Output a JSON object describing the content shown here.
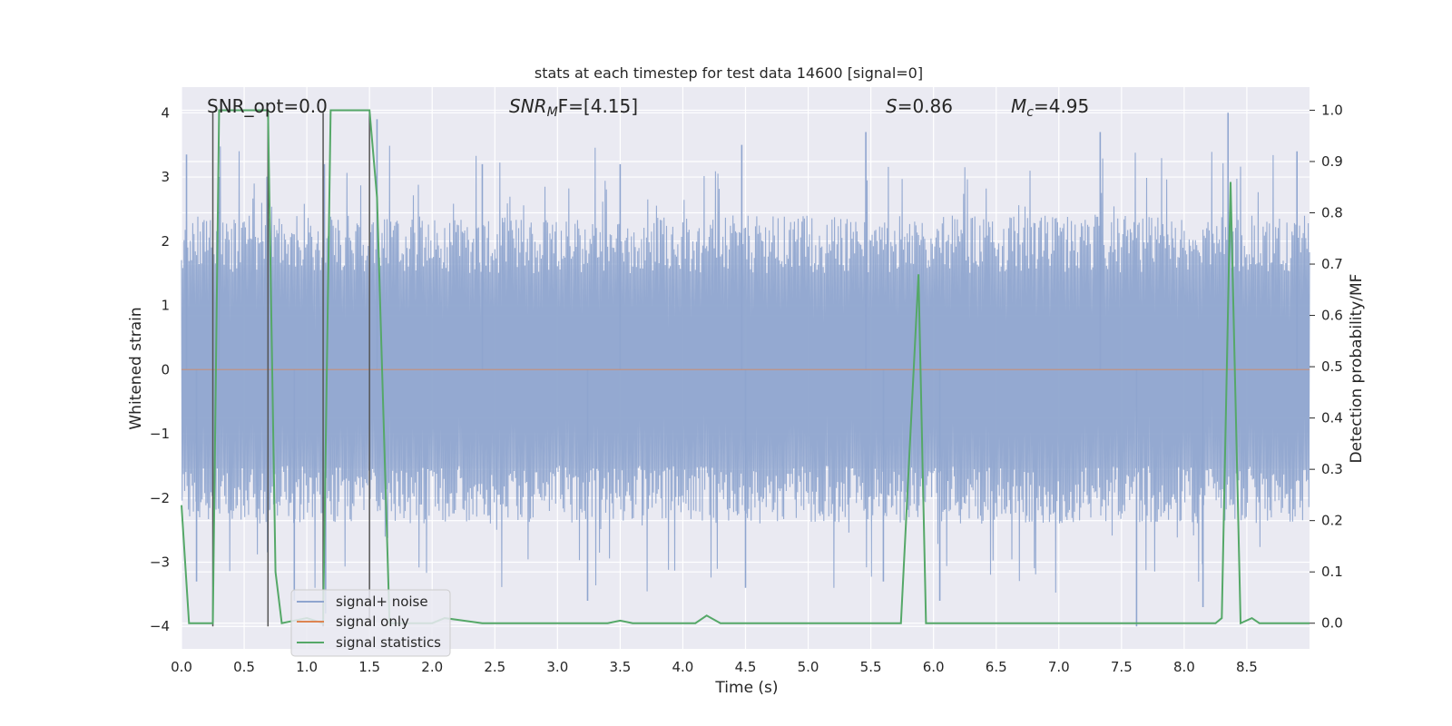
{
  "chart_data": {
    "type": "line",
    "title": "stats at each timestep for test data 14600 [signal=0]",
    "xlabel": "Time (s)",
    "ylabel_left": "Whitened strain",
    "ylabel_right": "Detection probability/MF",
    "xlim": [
      0.0,
      9.0
    ],
    "ylim_left": [
      -4.35,
      4.4
    ],
    "ylim_right": [
      -0.05,
      1.045
    ],
    "grid": true,
    "x_ticks": [
      0.0,
      0.5,
      1.0,
      1.5,
      2.0,
      2.5,
      3.0,
      3.5,
      4.0,
      4.5,
      5.0,
      5.5,
      6.0,
      6.5,
      7.0,
      7.5,
      8.0,
      8.5
    ],
    "x_tick_labels": [
      "0.0",
      "0.5",
      "1.0",
      "1.5",
      "2.0",
      "2.5",
      "3.0",
      "3.5",
      "4.0",
      "4.5",
      "5.0",
      "5.5",
      "6.0",
      "6.5",
      "7.0",
      "7.5",
      "8.0",
      "8.5"
    ],
    "y_left_ticks": [
      -4,
      -3,
      -2,
      -1,
      0,
      1,
      2,
      3,
      4
    ],
    "y_left_tick_labels": [
      "−4",
      "−3",
      "−2",
      "−1",
      "0",
      "1",
      "2",
      "3",
      "4"
    ],
    "y_right_ticks": [
      0.0,
      0.1,
      0.2,
      0.3,
      0.4,
      0.5,
      0.6,
      0.7,
      0.8,
      0.9,
      1.0
    ],
    "y_right_tick_labels": [
      "0.0",
      "0.1",
      "0.2",
      "0.3",
      "0.4",
      "0.5",
      "0.6",
      "0.7",
      "0.8",
      "0.9",
      "1.0"
    ],
    "annotations": {
      "snr_opt": "SNR_opt=0.0",
      "snr_mf_main": "SNR",
      "snr_mf_sub": "M",
      "snr_mf_rest": "F=[4.15]",
      "s_main": "S",
      "s_rest": "=0.86",
      "mc_main": "M",
      "mc_sub": "c",
      "mc_rest": "=4.95"
    },
    "marker_lines_x": [
      0.25,
      0.69,
      1.13,
      1.5
    ],
    "noise_band": {
      "envelope_low": -2.0,
      "envelope_high": 2.0,
      "peak_low": -4.0,
      "peak_high": 4.0
    },
    "series": [
      {
        "name": "signal+ noise",
        "axis": "left",
        "color": "#8fa5cf",
        "style": "dense noise trace, approx. 2 to 4 sigma excursions",
        "peaks": [
          {
            "x": 0.04,
            "y": 3.35
          },
          {
            "x": 0.12,
            "y": -3.3
          },
          {
            "x": 0.3,
            "y": 3.0
          },
          {
            "x": 0.9,
            "y": -3.6
          },
          {
            "x": 1.14,
            "y": 3.2
          },
          {
            "x": 1.15,
            "y": -3.8
          },
          {
            "x": 1.56,
            "y": 3.9
          },
          {
            "x": 2.4,
            "y": 3.2
          },
          {
            "x": 3.24,
            "y": -3.6
          },
          {
            "x": 3.5,
            "y": 3.2
          },
          {
            "x": 4.47,
            "y": 3.5
          },
          {
            "x": 4.5,
            "y": -3.4
          },
          {
            "x": 5.46,
            "y": 3.7
          },
          {
            "x": 5.6,
            "y": -3.3
          },
          {
            "x": 6.05,
            "y": -3.6
          },
          {
            "x": 7.33,
            "y": 3.7
          },
          {
            "x": 7.62,
            "y": -4.0
          },
          {
            "x": 8.15,
            "y": -3.7
          },
          {
            "x": 8.35,
            "y": 4.0
          },
          {
            "x": 8.9,
            "y": 3.4
          }
        ]
      },
      {
        "name": "signal only",
        "axis": "left",
        "color": "#dd8452",
        "x": [
          0.0,
          9.0
        ],
        "y": [
          0.0,
          0.0
        ]
      },
      {
        "name": "signal statistics",
        "axis": "right",
        "color": "#55a868",
        "x": [
          0.0,
          0.06,
          0.19,
          0.25,
          0.3,
          0.69,
          0.75,
          0.8,
          1.0,
          1.13,
          1.19,
          1.5,
          1.56,
          1.66,
          2.0,
          2.1,
          2.4,
          3.4,
          3.5,
          3.6,
          4.1,
          4.19,
          4.3,
          5.74,
          5.88,
          5.94,
          8.25,
          8.3,
          8.37,
          8.45,
          8.54,
          8.6,
          9.0
        ],
        "y": [
          0.23,
          0.0,
          0.0,
          0.0,
          1.0,
          1.0,
          0.1,
          0.0,
          0.01,
          0.0,
          1.0,
          1.0,
          0.83,
          0.0,
          0.0,
          0.01,
          0.0,
          0.0,
          0.005,
          0.0,
          0.0,
          0.015,
          0.0,
          0.0,
          0.68,
          0.0,
          0.0,
          0.01,
          0.86,
          0.0,
          0.01,
          0.0,
          0.0
        ]
      }
    ],
    "legend": {
      "placement": "lower-left",
      "entries": [
        "signal+ noise",
        "signal only",
        "signal statistics"
      ]
    }
  }
}
